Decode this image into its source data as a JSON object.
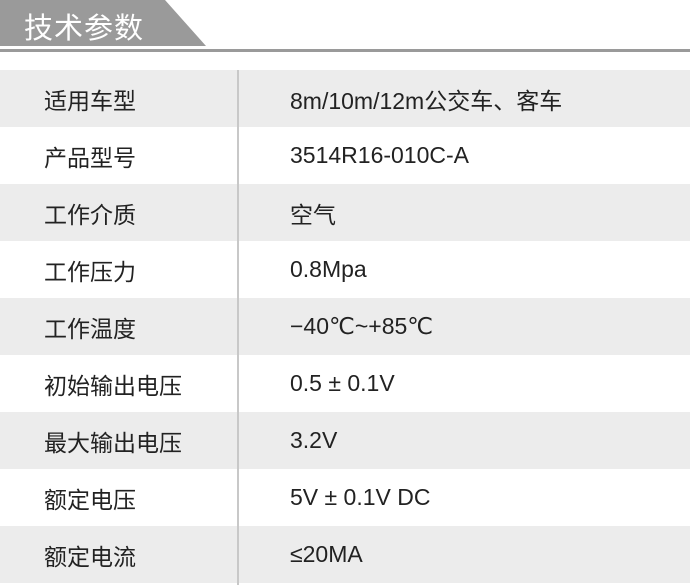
{
  "header": {
    "title": "技术参数"
  },
  "specs": [
    {
      "label": "适用车型",
      "value": "8m/10m/12m公交车、客车"
    },
    {
      "label": "产品型号",
      "value": "3514R16-010C-A"
    },
    {
      "label": "工作介质",
      "value": "空气"
    },
    {
      "label": "工作压力",
      "value": "0.8Mpa"
    },
    {
      "label": "工作温度",
      "value": "−40℃~+85℃"
    },
    {
      "label": "初始输出电压",
      "value": "0.5 ± 0.1V"
    },
    {
      "label": "最大输出电压",
      "value": "3.2V"
    },
    {
      "label": "额定电压",
      "value": "5V ± 0.1V DC"
    },
    {
      "label": "额定电流",
      "value": "≤20MA"
    }
  ]
}
